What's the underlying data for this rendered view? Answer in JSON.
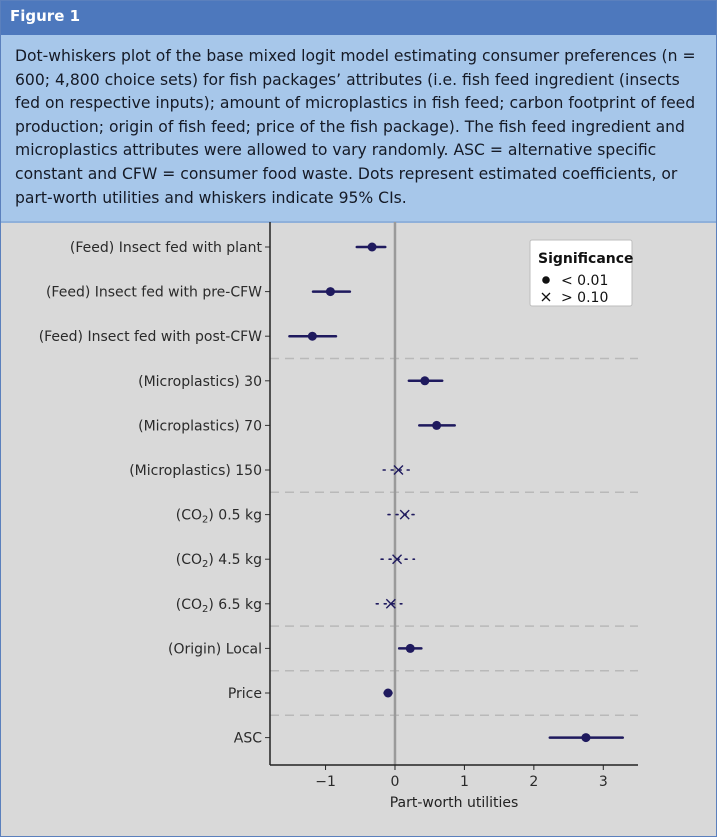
{
  "figure_label": "Figure 1",
  "caption": "Dot-whiskers plot of the base mixed logit model estimating consumer preferences (n = 600; 4,800 choice sets) for fish packages’ attributes (i.e. fish feed ingredient (insects fed on respective inputs); amount of microplastics in fish feed; carbon footprint of feed production; origin of fish feed; price of the fish package). The fish feed ingredient and microplastics attributes were allowed to vary randomly. ASC = alternative specific constant and CFW = consumer food waste. Dots represent estimated coefficients, or part-worth utilities and whiskers indicate 95% CIs.",
  "colors": {
    "mark": "#1f1a5e",
    "zero_line": "#9a9a9a",
    "separator": "#b9b9b9",
    "panel": "#d9d9d9"
  },
  "chart_data": {
    "type": "dot-whisker",
    "xlabel": "Part-worth utilities",
    "xlim": [
      -1.8,
      3.5
    ],
    "xticks": [
      -1,
      0,
      1,
      2,
      3
    ],
    "legend": {
      "title": "Significance",
      "position": "top-right",
      "entries": [
        {
          "marker": "dot",
          "label": "< 0.01"
        },
        {
          "marker": "cross",
          "label": "> 0.10"
        }
      ]
    },
    "group_separators_after": [
      2,
      5,
      8,
      9,
      10
    ],
    "rows": [
      {
        "label": "(Feed) Insect fed with plant",
        "estimate": -0.33,
        "low": -0.55,
        "high": -0.14,
        "significance": "< 0.01"
      },
      {
        "label": "(Feed) Insect fed with pre-CFW",
        "estimate": -0.93,
        "low": -1.18,
        "high": -0.65,
        "significance": "< 0.01"
      },
      {
        "label": "(Feed) Insect fed with post-CFW",
        "estimate": -1.19,
        "low": -1.52,
        "high": -0.85,
        "significance": "< 0.01"
      },
      {
        "label": "(Microplastics) 30",
        "estimate": 0.43,
        "low": 0.2,
        "high": 0.68,
        "significance": "< 0.01"
      },
      {
        "label": "(Microplastics) 70",
        "estimate": 0.6,
        "low": 0.35,
        "high": 0.86,
        "significance": "< 0.01"
      },
      {
        "label": "(Microplastics) 150",
        "estimate": 0.05,
        "low": -0.17,
        "high": 0.24,
        "significance": "> 0.10"
      },
      {
        "label": "(CO2) 0.5 kg",
        "estimate": 0.14,
        "low": -0.1,
        "high": 0.28,
        "significance": "> 0.10"
      },
      {
        "label": "(CO2) 4.5 kg",
        "estimate": 0.03,
        "low": -0.2,
        "high": 0.28,
        "significance": "> 0.10"
      },
      {
        "label": "(CO2) 6.5 kg",
        "estimate": -0.06,
        "low": -0.27,
        "high": 0.1,
        "significance": "> 0.10"
      },
      {
        "label": "(Origin) Local",
        "estimate": 0.22,
        "low": 0.06,
        "high": 0.38,
        "significance": "< 0.01"
      },
      {
        "label": "Price",
        "estimate": -0.1,
        "low": -0.15,
        "high": -0.05,
        "significance": "< 0.01"
      },
      {
        "label": "ASC",
        "estimate": 2.75,
        "low": 2.23,
        "high": 3.28,
        "significance": "< 0.01"
      }
    ]
  }
}
